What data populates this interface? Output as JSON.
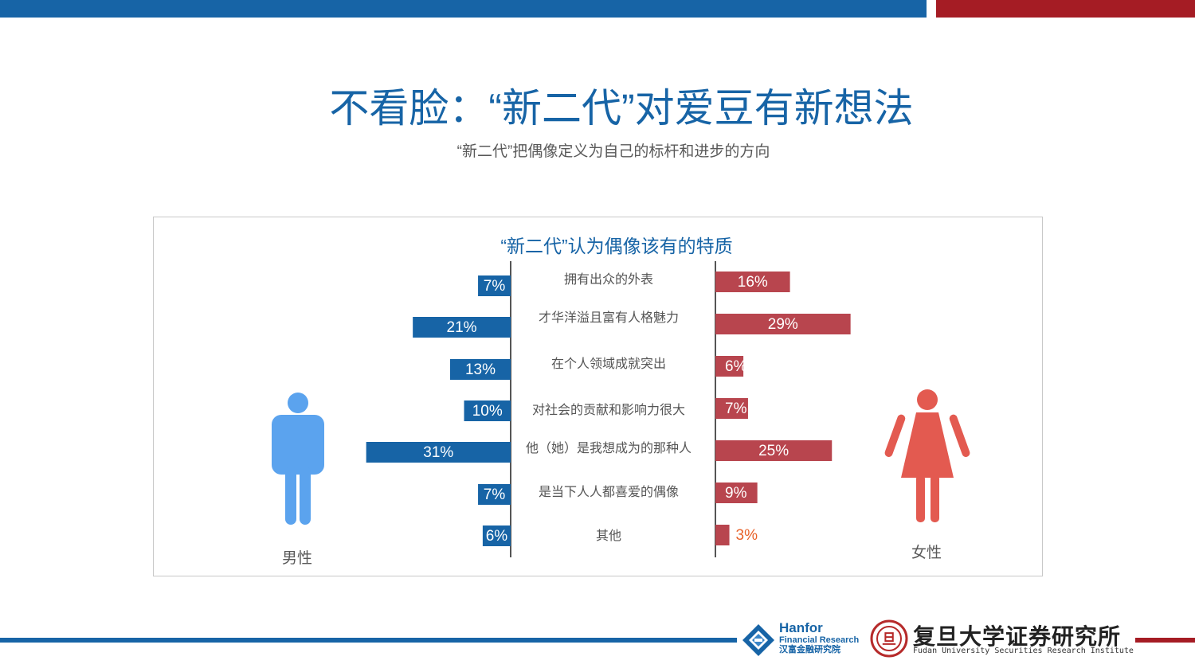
{
  "slide": {
    "title": "不看脸：“新二代”对爱豆有新想法",
    "subtitle": "“新二代”把偶像定义为自己的标杆和进步的方向"
  },
  "chart_data": {
    "type": "bar",
    "title": "“新二代”认为偶像该有的特质",
    "categories": [
      "拥有出众的外表",
      "才华洋溢且富有人格魅力",
      "在个人领域成就突出",
      "对社会的贡献和影响力很大",
      "他（她）是我想成为的那种人",
      "是当下人人都喜爱的偶像",
      "其他"
    ],
    "series": [
      {
        "name": "男性",
        "values": [
          7,
          21,
          13,
          10,
          31,
          7,
          6
        ],
        "labels": [
          "7%",
          "21%",
          "13%",
          "10%",
          "31%",
          "7%",
          "6%"
        ],
        "color": "#1764a6"
      },
      {
        "name": "女性",
        "values": [
          16,
          29,
          6,
          7,
          25,
          9,
          3
        ],
        "labels": [
          "16%",
          "29%",
          "6%",
          "7%",
          "25%",
          "9%",
          "3%"
        ],
        "color": "#b8454e"
      }
    ],
    "label_outside_color": "#e8622a"
  },
  "figures": {
    "male_label": "男性",
    "female_label": "女性",
    "male_color": "#5ba3ee",
    "female_color": "#e35a50"
  },
  "footer": {
    "hanfor_name": "Hanfor",
    "hanfor_sub": "Financial Research",
    "hanfor_cn": "汉富金融研究院",
    "fudan_cn": "复旦大学证券研究所",
    "fudan_en": "Fudan University Securities Research Institute",
    "fudan_seal_char": "旦"
  }
}
